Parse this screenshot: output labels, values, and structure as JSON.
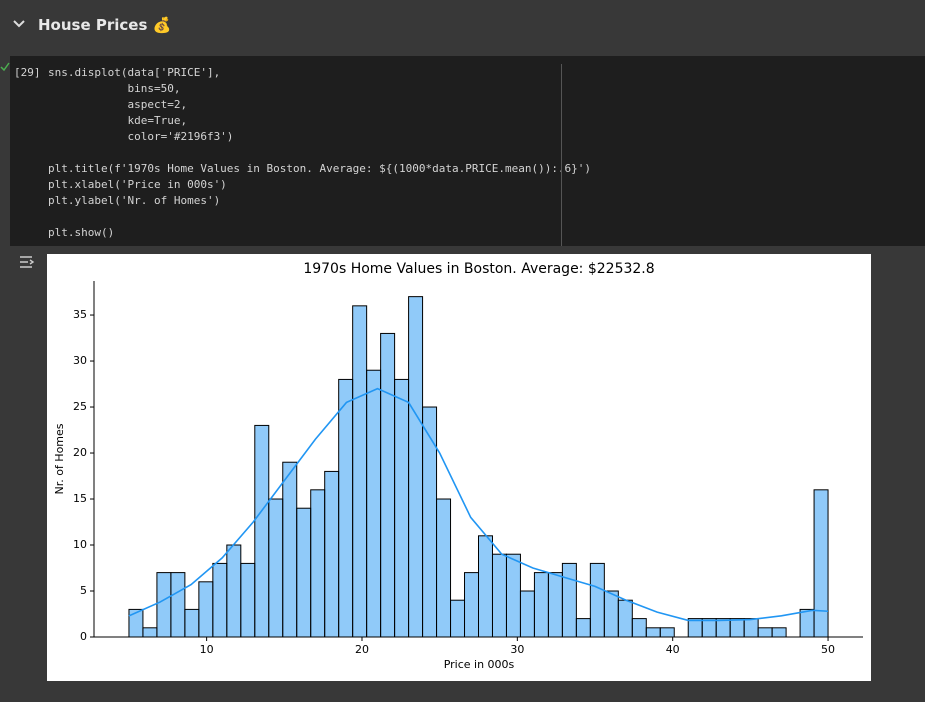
{
  "header": {
    "title": "House Prices 💰"
  },
  "cell": {
    "execution_count": "[29]",
    "code": [
      "sns.displot(data['PRICE'],",
      "            bins=50,",
      "            aspect=2,",
      "            kde=True,",
      "            color='#2196f3')",
      "plt.title(f'1970s Home Values in Boston. Average: ${(1000*data.PRICE.mean()):.6}')",
      "plt.xlabel('Price in 000s')",
      "plt.ylabel('Nr. of Homes')",
      "plt.show()"
    ]
  },
  "chart_data": {
    "type": "histogram",
    "title": "1970s Home Values in Boston. Average: $22532.8",
    "xlabel": "Price in 000s",
    "ylabel": "Nr. of Homes",
    "color": "#2196f3",
    "bins": [
      5.0,
      5.9,
      6.8,
      7.7,
      8.6,
      9.5,
      10.4,
      11.3,
      12.2,
      13.1,
      14.0,
      14.9,
      15.8,
      16.7,
      17.6,
      18.5,
      19.4,
      20.3,
      21.2,
      22.1,
      23.0,
      23.9,
      24.8,
      25.7,
      26.6,
      27.5,
      28.4,
      29.3,
      30.2,
      31.1,
      32.0,
      32.9,
      33.8,
      34.7,
      35.6,
      36.5,
      37.4,
      38.3,
      39.2,
      40.1,
      41.0,
      41.9,
      42.8,
      43.7,
      44.6,
      45.5,
      46.4,
      47.3,
      48.2,
      49.1,
      50.0
    ],
    "counts": [
      3,
      1,
      7,
      7,
      3,
      6,
      8,
      10,
      8,
      23,
      15,
      19,
      14,
      16,
      18,
      28,
      36,
      29,
      33,
      28,
      37,
      25,
      15,
      4,
      7,
      11,
      9,
      9,
      5,
      7,
      7,
      8,
      2,
      8,
      5,
      4,
      2,
      1,
      1,
      0,
      2,
      2,
      2,
      2,
      2,
      1,
      1,
      0,
      3,
      16
    ],
    "kde": {
      "x": [
        5,
        7,
        9,
        11,
        13,
        15,
        17,
        19,
        21,
        23,
        25,
        27,
        29,
        31,
        33,
        35,
        37,
        39,
        41,
        43,
        45,
        47,
        49,
        50
      ],
      "y": [
        2.3,
        3.8,
        5.7,
        8.6,
        12.5,
        17,
        21.5,
        25.5,
        27,
        25.5,
        20,
        13,
        9,
        7.5,
        6.5,
        5.5,
        4,
        2.7,
        1.8,
        1.8,
        1.9,
        2.3,
        2.9,
        2.8
      ]
    },
    "xlim": [
      2.75,
      52.25
    ],
    "ylim": [
      0,
      38.7
    ],
    "xticks": [
      10,
      20,
      30,
      40,
      50
    ],
    "yticks": [
      0,
      5,
      10,
      15,
      20,
      25,
      30,
      35
    ]
  }
}
